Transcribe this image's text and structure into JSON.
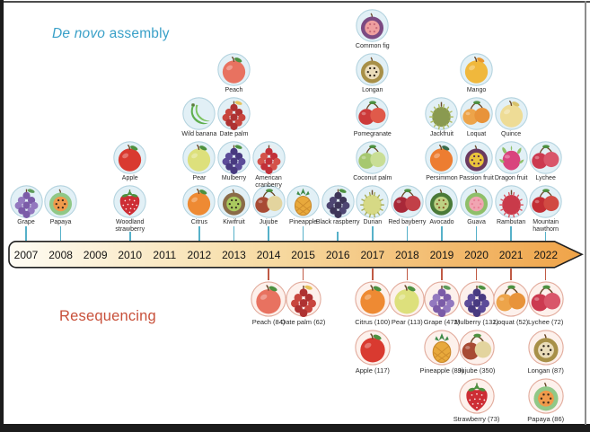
{
  "header": {
    "assembly_title_italic": "De novo",
    "assembly_title_rest": " assembly",
    "resequencing_title": "Resequencing"
  },
  "palette": {
    "assembly_accent": "#39a0c8",
    "resequencing_accent": "#c8503a",
    "assembly_circle_fill": "#e2f0f6",
    "assembly_circle_border": "#b2d2de",
    "reseq_circle_fill": "#fdf1ec",
    "reseq_circle_border": "#e2ab9c",
    "bar_border": "#1f1f1f",
    "bar_gradient": [
      "#fefcf4",
      "#f7dba3",
      "#efa348"
    ],
    "tick_assembly": "#56b1c9",
    "tick_reseq": "#c05a45"
  },
  "timeline": {
    "years": [
      "2007",
      "2008",
      "2009",
      "2010",
      "2011",
      "2012",
      "2013",
      "2014",
      "2015",
      "2016",
      "2017",
      "2018",
      "2019",
      "2020",
      "2021",
      "2022"
    ]
  },
  "assembly": {
    "columns": [
      {
        "year": "2007",
        "fruits": [
          {
            "label": "Grape",
            "shape": "cluster",
            "colors": [
              "#7b5ca8",
              "#9379bf",
              "#5f9b5a"
            ]
          }
        ]
      },
      {
        "year": "2008",
        "fruits": [
          {
            "label": "Papaya",
            "shape": "slice",
            "colors": [
              "#90c887",
              "#f09a4b",
              "#3c2c1c"
            ]
          }
        ]
      },
      {
        "year": "2010",
        "fruits": [
          {
            "label": "Woodland strawberry",
            "shape": "strawberry",
            "colors": [
              "#cd2d34",
              "#ffffff",
              "#4d9140"
            ],
            "two_line": true
          },
          {
            "label": "Apple",
            "shape": "round",
            "colors": [
              "#d93a30",
              "#4d9140"
            ]
          }
        ]
      },
      {
        "year": "2012",
        "fruits": [
          {
            "label": "Citrus",
            "shape": "round",
            "colors": [
              "#ee8a33",
              "#4d9140"
            ]
          },
          {
            "label": "Pear",
            "shape": "round",
            "colors": [
              "#dde07c",
              "#4d9140"
            ]
          },
          {
            "label": "Wild banana",
            "shape": "banana",
            "colors": [
              "#5fae4e",
              "#7cc35f"
            ]
          }
        ]
      },
      {
        "year": "2013",
        "fruits": [
          {
            "label": "Kiwifruit",
            "shape": "slice",
            "colors": [
              "#8a6b48",
              "#a9c95f",
              "#3a3222"
            ]
          },
          {
            "label": "Mulberry",
            "shape": "cluster",
            "colors": [
              "#483a80",
              "#5c4c99",
              "#4d9140"
            ]
          },
          {
            "label": "Date palm",
            "shape": "cluster",
            "colors": [
              "#ae3232",
              "#c8463e",
              "#e7c25a"
            ]
          },
          {
            "label": "Peach",
            "shape": "round",
            "colors": [
              "#e87260",
              "#4d9140"
            ]
          }
        ]
      },
      {
        "year": "2014",
        "fruits": [
          {
            "label": "Jujube",
            "shape": "pair",
            "colors": [
              "#a84b34",
              "#e3d49e"
            ]
          },
          {
            "label": "American cranberry",
            "shape": "cluster",
            "colors": [
              "#c23038",
              "#d4524a",
              "#e9eef0"
            ]
          }
        ]
      },
      {
        "year": "2015",
        "fruits": [
          {
            "label": "Pineapple",
            "shape": "pineapple",
            "colors": [
              "#e8a93c",
              "#3f8b4a"
            ]
          }
        ]
      },
      {
        "year": "2016",
        "fruits": [
          {
            "label": "Black raspberry",
            "shape": "cluster",
            "colors": [
              "#3d3558",
              "#4e4672",
              "#4d9140"
            ],
            "two_line": true
          }
        ]
      },
      {
        "year": "2017",
        "fruits": [
          {
            "label": "Durian",
            "shape": "spiky",
            "colors": [
              "#d6d985",
              "#a9ad58"
            ]
          },
          {
            "label": "Coconut palm",
            "shape": "pair",
            "colors": [
              "#a6c870",
              "#c9de96"
            ]
          },
          {
            "label": "Pomegranate",
            "shape": "pair",
            "colors": [
              "#cc3a3a",
              "#e05a4a"
            ]
          },
          {
            "label": "Longan",
            "shape": "slice",
            "colors": [
              "#a89048",
              "#eadcba",
              "#2a2118"
            ]
          },
          {
            "label": "Common fig",
            "shape": "slice",
            "colors": [
              "#7c4a82",
              "#ef9f9f",
              "#c86a7a"
            ]
          }
        ]
      },
      {
        "year": "2018",
        "fruits": [
          {
            "label": "Red bayberry",
            "shape": "pair",
            "colors": [
              "#a82838",
              "#c24048"
            ]
          }
        ]
      },
      {
        "year": "2019",
        "fruits": [
          {
            "label": "Avocado",
            "shape": "slice",
            "colors": [
              "#4a7a38",
              "#bdd183",
              "#8a5a2a"
            ]
          },
          {
            "label": "Persimmon",
            "shape": "round",
            "colors": [
              "#ed7d31",
              "#3a6b4a"
            ]
          },
          {
            "label": "Jackfruit",
            "shape": "spiky",
            "colors": [
              "#8a9a50",
              "#b0bc62"
            ]
          }
        ]
      },
      {
        "year": "2020",
        "fruits": [
          {
            "label": "Guava",
            "shape": "slice",
            "colors": [
              "#8fbf6a",
              "#f0a5b2",
              "#e88096"
            ]
          },
          {
            "label": "Passion fruit",
            "shape": "slice",
            "colors": [
              "#6a3a60",
              "#e9c43c",
              "#5a2a50"
            ]
          },
          {
            "label": "Loquat",
            "shape": "pair",
            "colors": [
              "#eda44a",
              "#e8933a"
            ]
          },
          {
            "label": "Mango",
            "shape": "round",
            "colors": [
              "#f0b83c",
              "#e8952e"
            ]
          }
        ]
      },
      {
        "year": "2021",
        "fruits": [
          {
            "label": "Rambutan",
            "shape": "spiky",
            "colors": [
              "#c93a4a",
              "#d95864"
            ]
          },
          {
            "label": "Dragon fruit",
            "shape": "dragon",
            "colors": [
              "#d9447e",
              "#8fbf6a"
            ]
          },
          {
            "label": "Quince",
            "shape": "round",
            "colors": [
              "#eedc96",
              "#d8c26a"
            ]
          }
        ]
      },
      {
        "year": "2022",
        "fruits": [
          {
            "label": "Mountain hawthorn",
            "shape": "pair",
            "colors": [
              "#c32e35",
              "#d14a42"
            ],
            "two_line": true
          },
          {
            "label": "Lychee",
            "shape": "pair",
            "colors": [
              "#cc3a50",
              "#d9566a"
            ]
          }
        ]
      }
    ]
  },
  "resequencing": {
    "columns": [
      {
        "year": "2014",
        "fruits": [
          {
            "label": "Peach (84)",
            "shape": "round",
            "colors": [
              "#e87260",
              "#4d9140"
            ]
          }
        ]
      },
      {
        "year": "2015",
        "fruits": [
          {
            "label": "Date palm (62)",
            "shape": "cluster",
            "colors": [
              "#ae3232",
              "#c8463e",
              "#e7c25a"
            ]
          }
        ]
      },
      {
        "year": "2017",
        "fruits": [
          {
            "label": "Citrus (100)",
            "shape": "round",
            "colors": [
              "#ee8a33",
              "#4d9140"
            ]
          },
          {
            "label": "Apple (117)",
            "shape": "round",
            "colors": [
              "#d93a30",
              "#4d9140"
            ]
          }
        ]
      },
      {
        "year": "2018",
        "fruits": [
          {
            "label": "Pear (113)",
            "shape": "round",
            "colors": [
              "#dde07c",
              "#4d9140"
            ]
          }
        ]
      },
      {
        "year": "2019",
        "fruits": [
          {
            "label": "Grape (472)",
            "shape": "cluster",
            "colors": [
              "#7b5ca8",
              "#9379bf",
              "#5f9b5a"
            ]
          },
          {
            "label": "Pineapple (89)",
            "shape": "pineapple",
            "colors": [
              "#e8a93c",
              "#3f8b4a"
            ]
          }
        ]
      },
      {
        "year": "2020",
        "fruits": [
          {
            "label": "Mulberry (132)",
            "shape": "cluster",
            "colors": [
              "#483a80",
              "#5c4c99",
              "#4d9140"
            ]
          },
          {
            "label": "Jujube (350)",
            "shape": "pair",
            "colors": [
              "#a84b34",
              "#e3d49e"
            ]
          },
          {
            "label": "Strawberry (73)",
            "shape": "strawberry",
            "colors": [
              "#cd2d34",
              "#ffffff",
              "#4d9140"
            ]
          }
        ]
      },
      {
        "year": "2021",
        "fruits": [
          {
            "label": "Loquat (52)",
            "shape": "pair",
            "colors": [
              "#eda44a",
              "#e8933a"
            ]
          }
        ]
      },
      {
        "year": "2022",
        "fruits": [
          {
            "label": "Lychee (72)",
            "shape": "pair",
            "colors": [
              "#cc3a50",
              "#d9566a"
            ]
          },
          {
            "label": "Longan (87)",
            "shape": "slice",
            "colors": [
              "#a89048",
              "#eadcba",
              "#2a2118"
            ]
          },
          {
            "label": "Papaya (86)",
            "shape": "slice",
            "colors": [
              "#90c887",
              "#f09a4b",
              "#3c2c1c"
            ]
          }
        ]
      }
    ]
  }
}
